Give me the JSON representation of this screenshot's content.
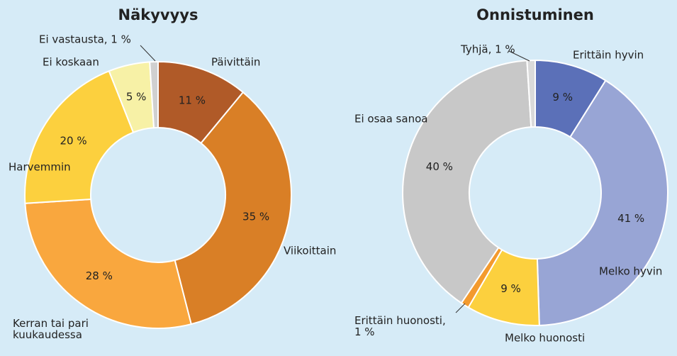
{
  "chart_data": [
    {
      "type": "donut",
      "title": "Näkyvyys",
      "categories": [
        "Päivittäin",
        "Viikoittain",
        "Kerran tai pari\nkuukaudessa",
        "Harvemmin",
        "Ei koskaan",
        "Ei vastausta, 1 %"
      ],
      "values": [
        11,
        35,
        28,
        20,
        5,
        1
      ],
      "value_labels": [
        "11 %",
        "35 %",
        "28 %",
        "20 %",
        "5 %",
        null
      ],
      "colors": [
        "#b05a28",
        "#d97f26",
        "#f9a73e",
        "#fcd03e",
        "#f7f1a6",
        "#d0d0d0"
      ]
    },
    {
      "type": "donut",
      "title": "Onnistuminen",
      "categories": [
        "Erittäin hyvin",
        "Melko hyvin",
        "Melko huonosti",
        "Erittäin huonosti,\n1 %",
        "Ei osaa sanoa",
        "Tyhjä, 1 %"
      ],
      "values": [
        9,
        41,
        9,
        1,
        40,
        1
      ],
      "value_labels": [
        "9 %",
        "41 %",
        "9 %",
        null,
        "40 %",
        null
      ],
      "colors": [
        "#5b70b8",
        "#98a5d5",
        "#fcd03e",
        "#f39a2e",
        "#c8c8c8",
        "#dadada"
      ]
    }
  ]
}
